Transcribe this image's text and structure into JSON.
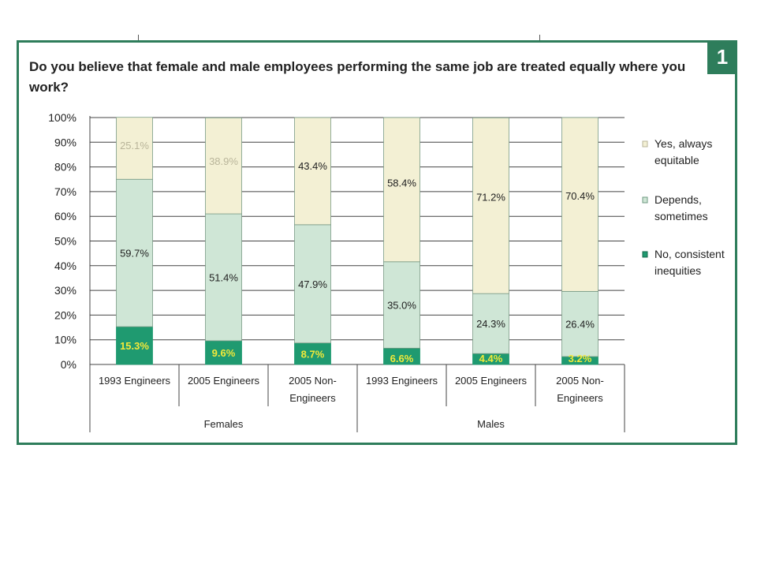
{
  "badge": "1",
  "title": "Do you believe that female and male employees performing the same job are treated equally where you work?",
  "colors": {
    "panel_border": "#2e7d5b",
    "yes": "#f3f0d4",
    "depends": "#cfe6d6",
    "no": "#1f9a70",
    "yellow_label": "#f2e93a"
  },
  "chart_data": {
    "type": "bar",
    "stacked": true,
    "ylim": [
      0,
      100
    ],
    "yticks": [
      "0%",
      "10%",
      "20%",
      "30%",
      "40%",
      "50%",
      "60%",
      "70%",
      "80%",
      "90%",
      "100%"
    ],
    "categories": [
      {
        "label": "1993 Engineers",
        "group": "Females"
      },
      {
        "label": "2005 Engineers",
        "group": "Females"
      },
      {
        "label": "2005 Non-Engineers",
        "group": "Females"
      },
      {
        "label": "1993 Engineers",
        "group": "Males"
      },
      {
        "label": "2005 Engineers",
        "group": "Males"
      },
      {
        "label": "2005 Non-Engineers",
        "group": "Males"
      }
    ],
    "groups": [
      "Females",
      "Males"
    ],
    "series": [
      {
        "name": "No, consistent inequities",
        "color": "#1f9a70",
        "values": [
          15.3,
          9.6,
          8.7,
          6.6,
          4.4,
          3.2
        ],
        "labels": [
          "15.3%",
          "9.6%",
          "8.7%",
          "6.6%",
          "4.4%",
          "3.2%"
        ]
      },
      {
        "name": "Depends, sometimes",
        "color": "#cfe6d6",
        "values": [
          59.7,
          51.4,
          47.9,
          35.0,
          24.3,
          26.4
        ],
        "labels": [
          "59.7%",
          "51.4%",
          "47.9%",
          "35.0%",
          "24.3%",
          "26.4%"
        ]
      },
      {
        "name": "Yes, always equitable",
        "color": "#f3f0d4",
        "values": [
          25.1,
          38.9,
          43.4,
          58.4,
          71.2,
          70.4
        ],
        "labels": [
          "25.1%",
          "38.9%",
          "43.4%",
          "58.4%",
          "71.2%",
          "70.4%"
        ]
      }
    ],
    "legend": [
      {
        "line1": "Yes, always",
        "line2": "equitable"
      },
      {
        "line1": "Depends,",
        "line2": "sometimes"
      },
      {
        "line1": "No, consistent",
        "line2": "inequities"
      }
    ],
    "legend_position": "right",
    "grid": true
  }
}
